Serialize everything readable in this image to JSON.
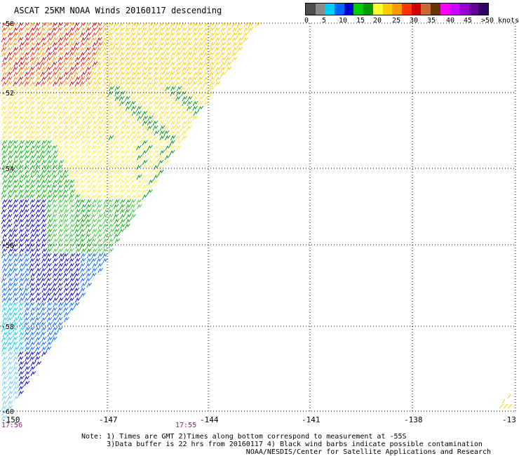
{
  "title": "ASCAT 25KM NOAA Winds 20160117 descending",
  "legend": {
    "colors": [
      "#4d4d4d",
      "#8c8c8c",
      "#00ccff",
      "#0066ff",
      "#0000cc",
      "#00cc00",
      "#009900",
      "#ffff33",
      "#ffcc00",
      "#ff9900",
      "#ff3300",
      "#cc0000",
      "#cc6633",
      "#663300",
      "#ff00ff",
      "#cc00ff",
      "#9900cc",
      "#660099",
      "#330066"
    ],
    "labels": [
      "0",
      "5",
      "10",
      "15",
      "20",
      "25",
      "30",
      "35",
      "40",
      "45",
      ">50 knots"
    ]
  },
  "y_labels": [
    "-50",
    "-52",
    "-54",
    "-56",
    "-58",
    "-60"
  ],
  "x_labels": [
    "-150",
    "-147",
    "-144",
    "-141",
    "-138",
    "-13"
  ],
  "times": [
    "17:56",
    "17:55"
  ],
  "note_lines": [
    "Note: 1) Times are GMT 2)Times along bottom correspond to measurement at -55S",
    "      3)Data buffer is 22 hrs from 20160117 4) Black wind barbs indicate possible contamination",
    "                                       NOAA/NESDIS/Center for Satellite Applications and Research"
  ]
}
